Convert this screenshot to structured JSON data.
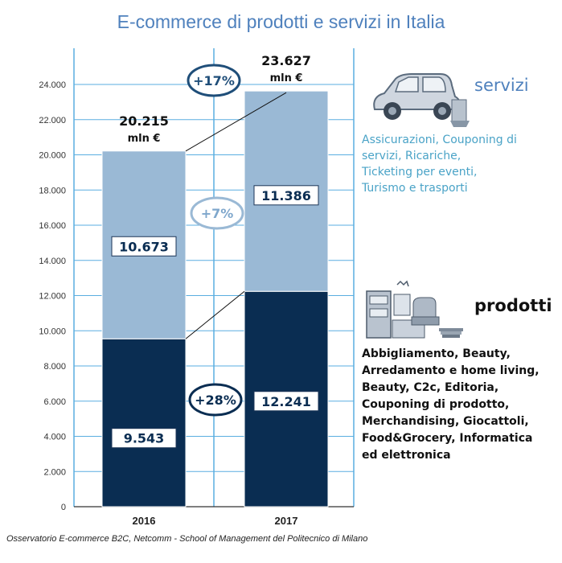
{
  "title": "E-commerce di prodotti e servizi in Italia",
  "caption": "Osservatorio E-commerce B2C, Netcomm - School of Management del Politecnico di Milano",
  "colors": {
    "servizi": "#9ab9d5",
    "prodotti": "#0a2d52",
    "accent": "#4f81bd",
    "grid": "#5aaee0"
  },
  "chart_data": {
    "type": "bar",
    "stacked": true,
    "categories": [
      "2016",
      "2017"
    ],
    "series": [
      {
        "name": "prodotti",
        "values": [
          9543,
          12241
        ]
      },
      {
        "name": "servizi",
        "values": [
          10673,
          11386
        ]
      }
    ],
    "bar_labels": {
      "prodotti": [
        "9.543",
        "12.241"
      ],
      "servizi": [
        "10.673",
        "11.386"
      ]
    },
    "totals": [
      {
        "value": "20.215",
        "unit": "mln €"
      },
      {
        "value": "23.627",
        "unit": "mln €"
      }
    ],
    "growth": {
      "total": "+17%",
      "servizi": "+7%",
      "prodotti": "+28%"
    },
    "ylim": [
      0,
      24000
    ],
    "yticks": [
      0,
      2000,
      4000,
      6000,
      8000,
      10000,
      12000,
      14000,
      16000,
      18000,
      20000,
      22000,
      24000
    ],
    "ytick_labels": [
      "0",
      "2.000",
      "4.000",
      "6.000",
      "8.000",
      "10.000",
      "12.000",
      "14.000",
      "16.000",
      "18.000",
      "20.000",
      "22.000",
      "24.000"
    ],
    "grid": true
  },
  "servizi": {
    "title": "servizi",
    "icon": "car-icon",
    "lines": [
      "Assicurazioni, Couponing di",
      "servizi, Ricariche,",
      "Ticketing per eventi,",
      "Turismo e trasporti"
    ]
  },
  "prodotti": {
    "title": "prodotti",
    "icon": "products-icon",
    "lines": [
      "Abbigliamento, Beauty,",
      "Arredamento e home living,",
      "Beauty, C2c, Editoria,",
      "Couponing di prodotto,",
      "Merchandising, Giocattoli,",
      "Food&Grocery, Informatica",
      "ed elettronica"
    ]
  }
}
